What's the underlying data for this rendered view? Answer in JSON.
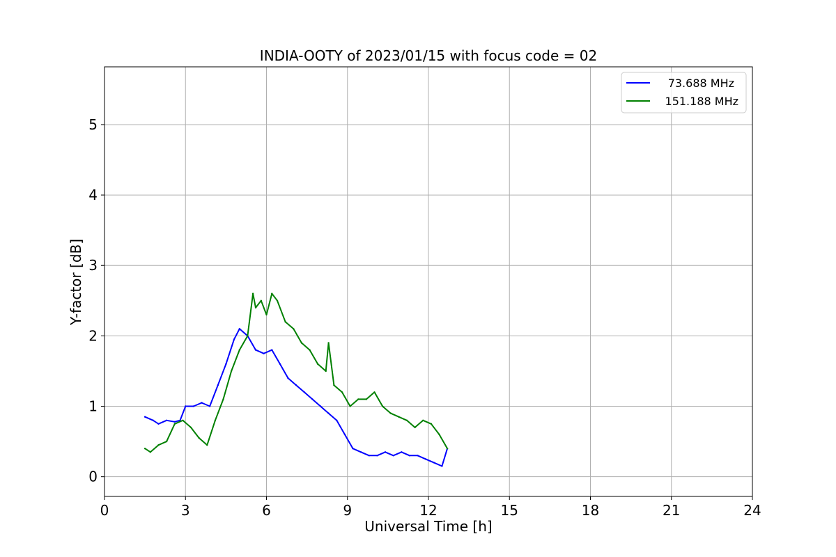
{
  "chart_data": {
    "type": "line",
    "title": "INDIA-OOTY of 2023/01/15 with focus code = 02",
    "xlabel": "Universal Time [h]",
    "ylabel": "Y-factor [dB]",
    "xlim": [
      0,
      24
    ],
    "ylim": [
      -0.28,
      5.82
    ],
    "xticks": [
      0,
      3,
      6,
      9,
      12,
      15,
      18,
      21,
      24
    ],
    "xtick_labels": [
      "0",
      "3",
      "6",
      "9",
      "12",
      "15",
      "18",
      "21",
      "24"
    ],
    "yticks": [
      0,
      1,
      2,
      3,
      4,
      5
    ],
    "ytick_labels": [
      "0",
      "1",
      "2",
      "3",
      "4",
      "5"
    ],
    "grid": true,
    "legend_position": "top-right",
    "series": [
      {
        "name": "73.688 MHz",
        "color": "#0000ff",
        "x": [
          1.5,
          1.8,
          2.0,
          2.3,
          2.6,
          2.8,
          3.0,
          3.3,
          3.6,
          3.9,
          4.2,
          4.5,
          4.8,
          5.0,
          5.3,
          5.6,
          5.9,
          6.2,
          6.5,
          6.8,
          7.1,
          7.4,
          7.7,
          8.0,
          8.3,
          8.6,
          8.9,
          9.2,
          9.5,
          9.8,
          10.1,
          10.4,
          10.7,
          11.0,
          11.3,
          11.6,
          11.9,
          12.2,
          12.5,
          12.7
        ],
        "y": [
          0.85,
          0.8,
          0.75,
          0.8,
          0.78,
          0.8,
          1.0,
          1.0,
          1.05,
          1.0,
          1.3,
          1.6,
          1.95,
          2.1,
          2.0,
          1.8,
          1.75,
          1.8,
          1.6,
          1.4,
          1.3,
          1.2,
          1.1,
          1.0,
          0.9,
          0.8,
          0.6,
          0.4,
          0.35,
          0.3,
          0.3,
          0.35,
          0.3,
          0.35,
          0.3,
          0.3,
          0.25,
          0.2,
          0.15,
          0.4
        ]
      },
      {
        "name": "151.188 MHz",
        "color": "#008000",
        "x": [
          1.5,
          1.7,
          2.0,
          2.3,
          2.6,
          2.9,
          3.2,
          3.5,
          3.8,
          4.1,
          4.4,
          4.7,
          5.0,
          5.3,
          5.5,
          5.6,
          5.8,
          6.0,
          6.2,
          6.4,
          6.7,
          7.0,
          7.3,
          7.6,
          7.9,
          8.2,
          8.3,
          8.5,
          8.8,
          9.1,
          9.4,
          9.7,
          10.0,
          10.3,
          10.6,
          10.9,
          11.2,
          11.5,
          11.8,
          12.1,
          12.4,
          12.7
        ],
        "y": [
          0.4,
          0.35,
          0.45,
          0.5,
          0.75,
          0.8,
          0.7,
          0.55,
          0.45,
          0.8,
          1.1,
          1.5,
          1.8,
          2.0,
          2.6,
          2.4,
          2.5,
          2.3,
          2.6,
          2.5,
          2.2,
          2.1,
          1.9,
          1.8,
          1.6,
          1.5,
          1.9,
          1.3,
          1.2,
          1.0,
          1.1,
          1.1,
          1.2,
          1.0,
          0.9,
          0.85,
          0.8,
          0.7,
          0.8,
          0.75,
          0.6,
          0.4
        ]
      }
    ]
  }
}
